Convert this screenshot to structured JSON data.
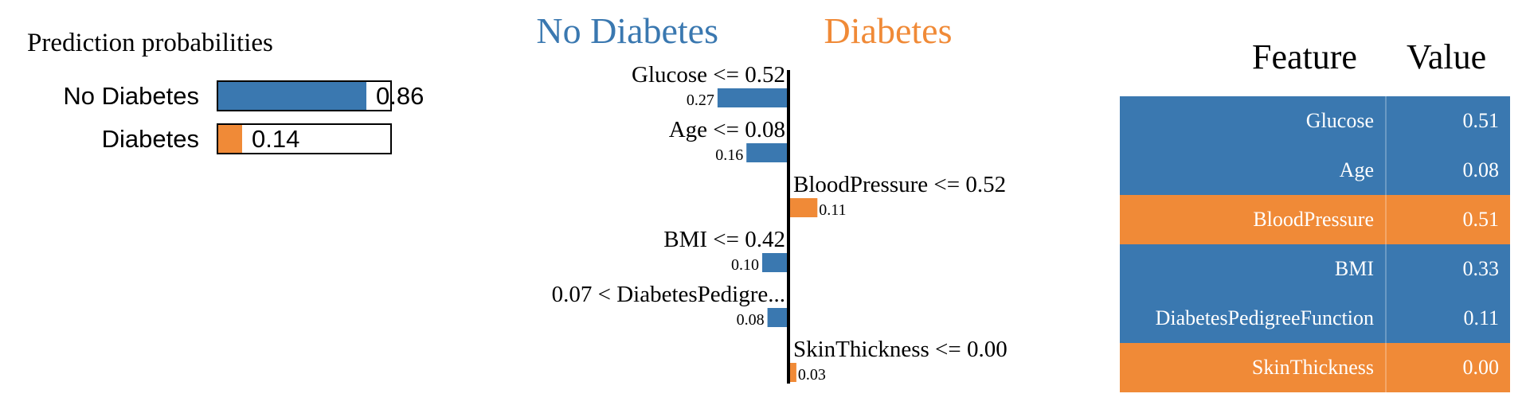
{
  "colors": {
    "neg": "#3a78b0",
    "pos": "#f08a37"
  },
  "prediction_probabilities": {
    "title": "Prediction probabilities",
    "rows": [
      {
        "label": "No Diabetes",
        "value": 0.86,
        "display": "0.86",
        "color": "#3a78b0"
      },
      {
        "label": "Diabetes",
        "value": 0.14,
        "display": "0.14",
        "color": "#f08a37"
      }
    ]
  },
  "chart_data": {
    "type": "bar",
    "orientation": "horizontal-diverging",
    "neg_class": "No Diabetes",
    "pos_class": "Diabetes",
    "features": [
      {
        "condition": "Glucose <= 0.52",
        "weight": 0.27,
        "display": "0.27",
        "class": "neg"
      },
      {
        "condition": "Age <= 0.08",
        "weight": 0.16,
        "display": "0.16",
        "class": "neg"
      },
      {
        "condition": "BloodPressure <= 0.52",
        "weight": 0.11,
        "display": "0.11",
        "class": "pos"
      },
      {
        "condition": "BMI <= 0.42",
        "weight": 0.1,
        "display": "0.10",
        "class": "neg"
      },
      {
        "condition": "0.07 < DiabetesPedigre...",
        "weight": 0.08,
        "display": "0.08",
        "class": "neg"
      },
      {
        "condition": "SkinThickness <= 0.00",
        "weight": 0.03,
        "display": "0.03",
        "class": "pos"
      }
    ]
  },
  "feature_table": {
    "headers": {
      "feature": "Feature",
      "value": "Value"
    },
    "rows": [
      {
        "feature": "Glucose",
        "value": "0.51",
        "class": "neg"
      },
      {
        "feature": "Age",
        "value": "0.08",
        "class": "neg"
      },
      {
        "feature": "BloodPressure",
        "value": "0.51",
        "class": "pos"
      },
      {
        "feature": "BMI",
        "value": "0.33",
        "class": "neg"
      },
      {
        "feature": "DiabetesPedigreeFunction",
        "value": "0.11",
        "class": "neg"
      },
      {
        "feature": "SkinThickness",
        "value": "0.00",
        "class": "pos"
      }
    ]
  }
}
